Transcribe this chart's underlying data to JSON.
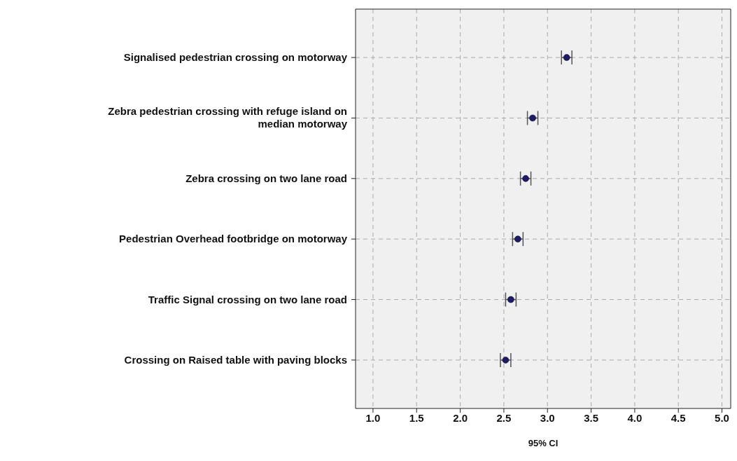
{
  "chart_data": {
    "type": "scatter",
    "categories": [
      "Signalised pedestrian crossing on motorway",
      "Zebra pedestrian crossing with refuge island on median motorway",
      "Zebra crossing on two lane road",
      "Pedestrian Overhead footbridge on motorway",
      "Traffic Signal crossing on two lane road",
      "Crossing on Raised table with paving blocks"
    ],
    "values": [
      3.22,
      2.83,
      2.75,
      2.66,
      2.58,
      2.52
    ],
    "errors": [
      0.06,
      0.06,
      0.06,
      0.06,
      0.06,
      0.06
    ],
    "orientation": "horizontal",
    "color": "#1a1a6e",
    "marker": "circle",
    "xlabel": "95% CI",
    "xlim": [
      0.8,
      5.1
    ],
    "xticks": [
      {
        "value": 1,
        "label": "1.0"
      },
      {
        "value": 1.5,
        "label": "1.5"
      },
      {
        "value": 2,
        "label": "2.0"
      },
      {
        "value": 2.5,
        "label": "2.5"
      },
      {
        "value": 3,
        "label": "3.0"
      },
      {
        "value": 3.5,
        "label": "3.5"
      },
      {
        "value": 4,
        "label": "4.0"
      },
      {
        "value": 4.5,
        "label": "4.5"
      },
      {
        "value": 5,
        "label": "5.0"
      }
    ],
    "grid": true
  }
}
